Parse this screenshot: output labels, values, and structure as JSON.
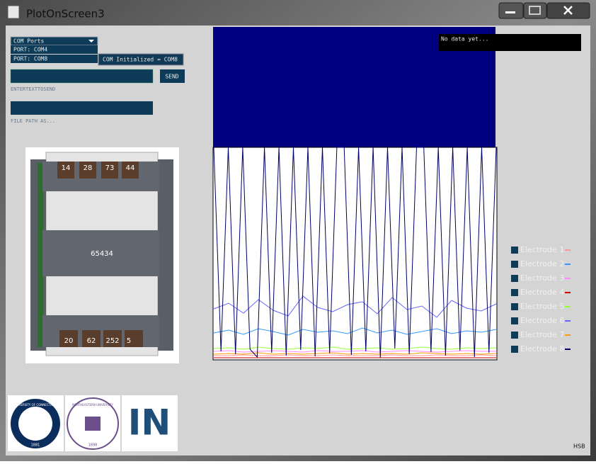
{
  "window": {
    "title": "PlotOnScreen3"
  },
  "controls": {
    "com_ports": "COM Ports",
    "ports": [
      "PORT: COM4",
      "PORT: COM8"
    ],
    "status": "COM Initialized = COM8",
    "send": "SEND",
    "text_label": "ENTERTEXTTOSEND",
    "file_label": "FILE PATH AS..."
  },
  "device": {
    "top": [
      14,
      28,
      73,
      44
    ],
    "center": 65434,
    "bottom": [
      20,
      62,
      252,
      5
    ]
  },
  "readout": "No data yet...",
  "logos": {
    "uconn": "UNIVERSITY OF CONNECTICUT",
    "uconn_year": "1881",
    "neu": "NORTHEASTERN UNIVERSITY",
    "neu_year": "1898",
    "in": "IN"
  },
  "chart_data": {
    "type": "line",
    "ylim": [
      0,
      300
    ],
    "series": [
      {
        "name": "Electrode 1",
        "color": "#ff9999",
        "values": [
          6,
          6,
          7,
          6,
          6,
          7,
          6,
          6,
          7,
          6,
          6,
          6,
          7,
          6,
          6,
          7,
          6,
          6,
          7,
          6
        ]
      },
      {
        "name": "Electrode 2",
        "color": "#3399ff",
        "values": [
          38,
          42,
          36,
          44,
          40,
          35,
          43,
          39,
          41,
          37,
          45,
          38,
          42,
          36,
          40,
          44,
          37,
          41,
          39,
          43
        ]
      },
      {
        "name": "Electrode 3",
        "color": "#ff88ff",
        "values": [
          12,
          13,
          11,
          12,
          13,
          12,
          11,
          13,
          12,
          12,
          13,
          11,
          12,
          13,
          12,
          11,
          12,
          13,
          12,
          12
        ]
      },
      {
        "name": "Electrode 4",
        "color": "#cc0000",
        "values": [
          3,
          3,
          3,
          3,
          3,
          3,
          3,
          3,
          3,
          3,
          3,
          3,
          3,
          3,
          3,
          3,
          3,
          3,
          3,
          3
        ]
      },
      {
        "name": "Electrode 5",
        "color": "#99ff33",
        "values": [
          16,
          17,
          15,
          18,
          16,
          15,
          17,
          16,
          18,
          15,
          16,
          17,
          15,
          16,
          18,
          16,
          15,
          17,
          16,
          17
        ]
      },
      {
        "name": "Electrode 6",
        "color": "#6666ff",
        "values": [
          72,
          80,
          66,
          85,
          70,
          62,
          90,
          74,
          68,
          78,
          82,
          65,
          88,
          71,
          76,
          60,
          84,
          73,
          69,
          79
        ]
      },
      {
        "name": "Electrode 7",
        "color": "#ff9900",
        "values": [
          8,
          9,
          8,
          10,
          8,
          9,
          8,
          9,
          10,
          8,
          9,
          8,
          9,
          8,
          10,
          9,
          8,
          9,
          8,
          9
        ]
      },
      {
        "name": "Electrode 8",
        "color": "#000066",
        "values": [
          300,
          12,
          300,
          8,
          300,
          15,
          4,
          300,
          10,
          300,
          6,
          300,
          14,
          300,
          5,
          300,
          9,
          300,
          300,
          7,
          300,
          12,
          300,
          3,
          300,
          16,
          300,
          8,
          300,
          300,
          11,
          300,
          6,
          300,
          13,
          300,
          4,
          300,
          10,
          300
        ]
      }
    ]
  },
  "footer": "HSB"
}
